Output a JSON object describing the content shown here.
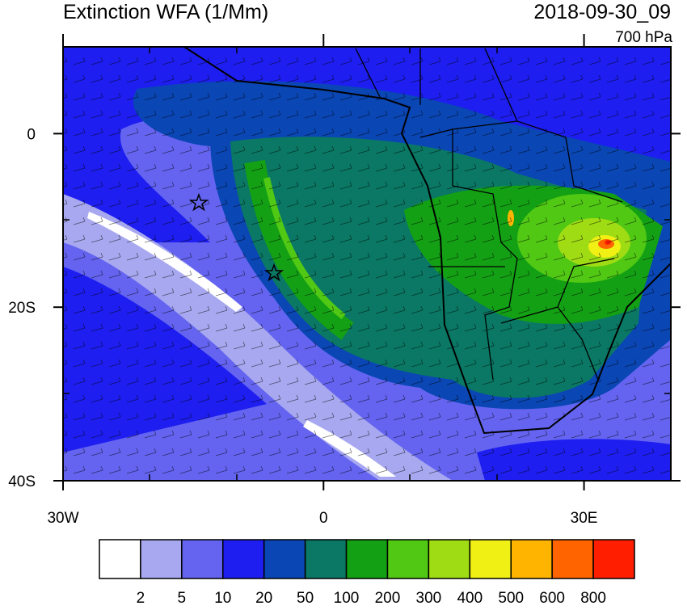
{
  "header": {
    "title": "Extinction WFA (1/Mm)",
    "date": "2018-09-30_09",
    "level": "700 hPa"
  },
  "map": {
    "lon_lim": [
      -30,
      40
    ],
    "lat_lim": [
      10,
      -40
    ],
    "lon_ticks": [
      {
        "value": -30,
        "label": "30W"
      },
      0,
      {
        "value": 30,
        "label": "30E"
      }
    ],
    "lat_ticks": [
      0,
      {
        "value": -20,
        "label": "20S"
      },
      {
        "value": -40,
        "label": "40S"
      }
    ]
  },
  "colorbar": {
    "levels": [
      2,
      5,
      10,
      20,
      50,
      100,
      200,
      300,
      400,
      500,
      600,
      800
    ],
    "colors": [
      "#ffffff",
      "#a8a8f0",
      "#6464f0",
      "#1e1ef0",
      "#0a46b4",
      "#0a7864",
      "#14a014",
      "#50c814",
      "#a0dc14",
      "#f0f014",
      "#ffb400",
      "#ff6400",
      "#ff1e00"
    ]
  }
}
